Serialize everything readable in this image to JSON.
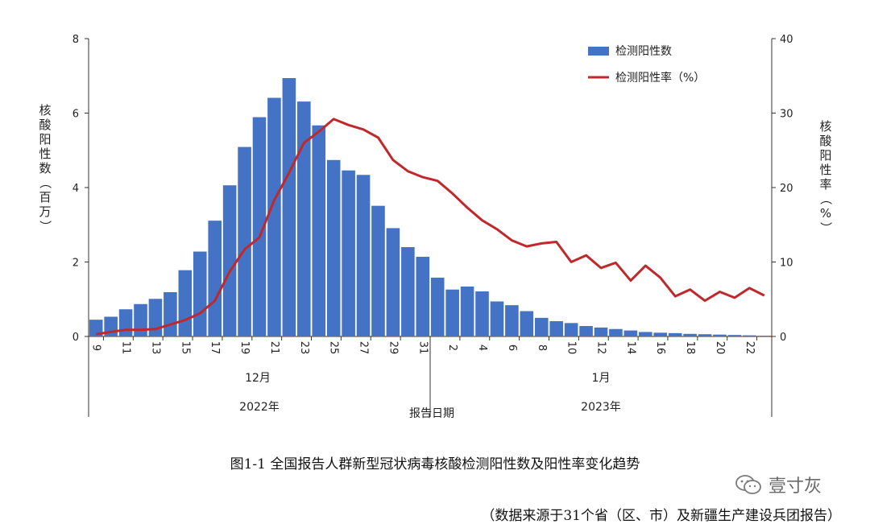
{
  "chart_data": {
    "type": "bar+line",
    "legend": {
      "position": "top-right",
      "bar_series": "检测阳性数",
      "line_series": "检测阳性率（%）"
    },
    "y_left": {
      "label": "核酸阳性数（百万）",
      "range": [
        0,
        8
      ],
      "ticks": [
        "0",
        "2",
        "4",
        "6",
        "8"
      ]
    },
    "y_right": {
      "label": "核酸阳性率（%）",
      "range": [
        0,
        40
      ],
      "ticks": [
        "0",
        "10",
        "20",
        "30",
        "40"
      ]
    },
    "x_axis": {
      "label": "报告日期",
      "tick_labels": [
        "9",
        "11",
        "13",
        "15",
        "17",
        "19",
        "21",
        "23",
        "25",
        "27",
        "29",
        "31",
        "2",
        "4",
        "6",
        "8",
        "10",
        "12",
        "14",
        "16",
        "18",
        "20",
        "22"
      ],
      "month_labels": [
        "12月",
        "1月"
      ],
      "year_labels": [
        "2022年",
        "2023年"
      ]
    },
    "categories": [
      "12-09",
      "12-10",
      "12-11",
      "12-12",
      "12-13",
      "12-14",
      "12-15",
      "12-16",
      "12-17",
      "12-18",
      "12-19",
      "12-20",
      "12-21",
      "12-22",
      "12-23",
      "12-24",
      "12-25",
      "12-26",
      "12-27",
      "12-28",
      "12-29",
      "12-30",
      "12-31",
      "01-01",
      "01-02",
      "01-03",
      "01-04",
      "01-05",
      "01-06",
      "01-07",
      "01-08",
      "01-09",
      "01-10",
      "01-11",
      "01-12",
      "01-13",
      "01-14",
      "01-15",
      "01-16",
      "01-17",
      "01-18",
      "01-19",
      "01-20",
      "01-21",
      "01-22",
      "01-23"
    ],
    "series": [
      {
        "name": "检测阳性数",
        "type": "bar",
        "axis": "left",
        "color": "#4472c4",
        "values": [
          0.45,
          0.53,
          0.73,
          0.87,
          1.01,
          1.19,
          1.78,
          2.28,
          3.11,
          4.06,
          5.09,
          5.89,
          6.41,
          6.94,
          6.31,
          5.67,
          4.74,
          4.46,
          4.34,
          3.51,
          2.91,
          2.4,
          2.14,
          1.58,
          1.26,
          1.34,
          1.21,
          0.94,
          0.84,
          0.68,
          0.5,
          0.41,
          0.36,
          0.28,
          0.24,
          0.2,
          0.16,
          0.12,
          0.1,
          0.09,
          0.07,
          0.06,
          0.05,
          0.04,
          0.03,
          0.02
        ]
      },
      {
        "name": "检测阳性率（%）",
        "type": "line",
        "axis": "right",
        "color": "#c0282c",
        "values": [
          0.3,
          0.6,
          0.9,
          0.9,
          1.0,
          1.6,
          2.2,
          3.1,
          4.8,
          8.7,
          11.7,
          13.3,
          18.3,
          22.0,
          26.0,
          27.5,
          29.2,
          28.4,
          27.8,
          26.7,
          23.7,
          22.2,
          21.4,
          20.9,
          19.2,
          17.3,
          15.6,
          14.4,
          12.9,
          12.1,
          12.5,
          12.7,
          10.0,
          10.9,
          9.2,
          9.9,
          7.5,
          9.5,
          7.9,
          5.4,
          6.3,
          4.8,
          6.0,
          5.2,
          6.5,
          5.5
        ]
      }
    ]
  },
  "caption": "图1-1 全国报告人群新型冠状病毒核酸检测阳性数及阳性率变化趋势",
  "source": "（数据来源于31个省（区、市）及新疆生产建设兵团报告）",
  "watermark": {
    "text": "壹寸灰",
    "icon": "wechat-logo-icon"
  }
}
